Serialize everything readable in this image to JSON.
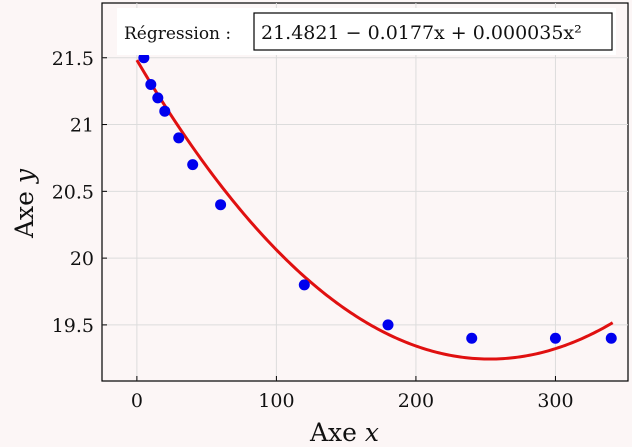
{
  "chart_data": {
    "type": "scatter",
    "xlabel": "Axe",
    "xlabel_var": "x",
    "ylabel": "Axe",
    "ylabel_var": "y",
    "xlim": [
      -25,
      352
    ],
    "ylim": [
      19.08,
      21.91
    ],
    "x_ticks": [
      0,
      100,
      200,
      300
    ],
    "y_ticks": [
      19.5,
      20,
      20.5,
      21,
      21.5
    ],
    "y_tick_labels": [
      "19.5",
      "20",
      "20.5",
      "21",
      "21.5"
    ],
    "grid": true,
    "points": {
      "color": "#0000ee",
      "x": [
        5,
        10,
        15,
        20,
        30,
        40,
        60,
        120,
        180,
        240,
        300,
        340
      ],
      "y": [
        21.5,
        21.3,
        21.2,
        21.1,
        20.9,
        20.7,
        20.4,
        19.8,
        19.5,
        19.4,
        19.4,
        19.4
      ]
    },
    "regression": {
      "color": "#e01010",
      "coefficients": [
        21.4821,
        -0.0177,
        3.5e-05
      ],
      "x_range": [
        0,
        341
      ]
    },
    "annotation": {
      "prefix": "Régression :",
      "formula": "21.4821 − 0.0177x + 0.000035x²"
    }
  }
}
